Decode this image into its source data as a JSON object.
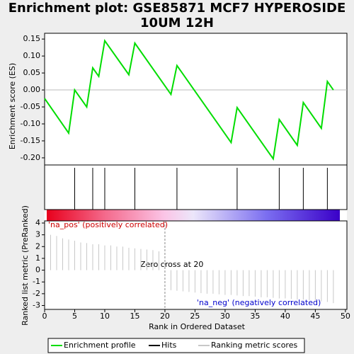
{
  "chart_data": {
    "type": "line",
    "title": "Enrichment plot: GSE85871 MCF7 HYPEROSIDE",
    "subtitle": "10UM 12H",
    "x_label": "Rank in Ordered Dataset",
    "y_label": "Enrichment score (ES)",
    "y2_label": "Ranked list metric (PreRanked)",
    "xlim": [
      0,
      50
    ],
    "xticks": [
      0,
      5,
      10,
      15,
      20,
      25,
      30,
      35,
      40,
      45,
      50
    ],
    "ylim": [
      -0.221,
      0.167
    ],
    "yticks": [
      {
        "value": 0.15,
        "label": "0.15"
      },
      {
        "value": 0.1,
        "label": "0.10"
      },
      {
        "value": 0.05,
        "label": "0.05"
      },
      {
        "value": 0,
        "label": "0.00"
      },
      {
        "value": -0.05,
        "label": "-0.05"
      },
      {
        "value": -0.1,
        "label": "-0.10"
      },
      {
        "value": -0.15,
        "label": "-0.15"
      },
      {
        "value": -0.2,
        "label": "-0.20"
      }
    ],
    "y2lim": [
      -3.33,
      4.18
    ],
    "y2ticks": [
      4,
      3,
      2,
      1,
      0,
      -1,
      -2,
      -3
    ],
    "series": [
      {
        "name": "Enrichment profile",
        "color": "#00dd00",
        "x": [
          0,
          4,
          5,
          7,
          8,
          9,
          10,
          14,
          15,
          21,
          22,
          31,
          32,
          38,
          39,
          42,
          43,
          46,
          47,
          48
        ],
        "values": [
          -0.025,
          -0.127,
          0.0,
          -0.05,
          0.065,
          0.04,
          0.145,
          0.045,
          0.138,
          -0.013,
          0.072,
          -0.155,
          -0.052,
          -0.203,
          -0.087,
          -0.163,
          -0.037,
          -0.113,
          0.025,
          0.0
        ]
      },
      {
        "name": "Hits",
        "color": "#000000",
        "x": [
          5,
          8,
          10,
          15,
          22,
          32,
          39,
          43,
          47
        ]
      },
      {
        "name": "Ranking metric scores",
        "color": "#c8c8c8",
        "axis": "y2",
        "x": [
          1,
          2,
          3,
          4,
          5,
          6,
          7,
          8,
          9,
          10,
          11,
          12,
          13,
          14,
          15,
          16,
          17,
          18,
          19,
          21,
          22,
          23,
          24,
          25,
          26,
          27,
          28,
          29,
          30,
          31,
          32,
          33,
          34,
          35,
          36,
          37,
          38,
          39,
          40,
          41,
          42,
          43,
          44,
          45,
          46,
          47,
          48
        ],
        "values": [
          3.0,
          2.9,
          2.7,
          2.6,
          2.5,
          2.35,
          2.3,
          2.2,
          2.2,
          2.1,
          2.1,
          2.0,
          2.0,
          1.9,
          1.85,
          1.8,
          1.75,
          1.7,
          1.6,
          -1.7,
          -1.75,
          -1.8,
          -1.85,
          -1.9,
          -1.95,
          -2.0,
          -2.0,
          -2.05,
          -2.1,
          -2.1,
          -2.15,
          -2.2,
          -2.2,
          -2.25,
          -2.3,
          -2.3,
          -2.35,
          -2.4,
          -2.4,
          -2.45,
          -2.5,
          -2.5,
          -2.55,
          -2.6,
          -2.65,
          -2.7,
          -2.8
        ]
      }
    ],
    "zero_cross": 20,
    "annotations": {
      "pos": "'na_pos' (positively correlated)",
      "zero": "Zero cross at 20",
      "neg": "'na_neg' (negatively correlated)"
    }
  }
}
